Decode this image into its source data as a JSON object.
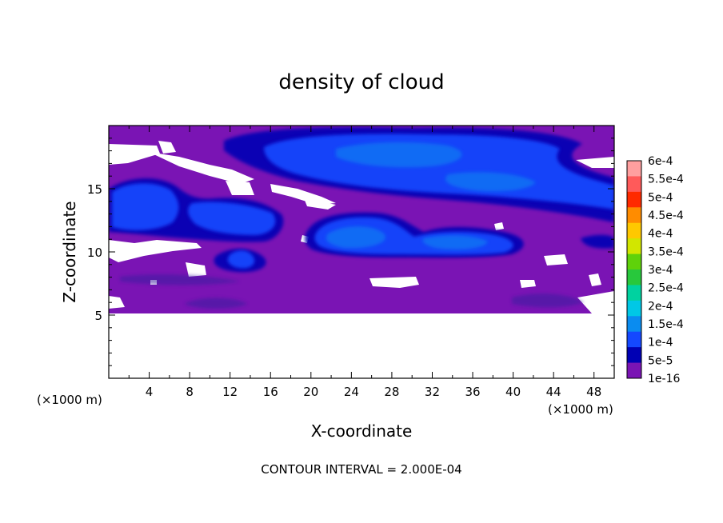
{
  "chart_data": {
    "type": "heatmap",
    "title": "density of cloud",
    "xlabel": "X-coordinate",
    "ylabel": "Z-coordinate",
    "x_unit": "(×1000 m)",
    "z_unit": "(×1000 m)",
    "xlim": [
      0,
      50
    ],
    "ylim": [
      0,
      20
    ],
    "x_ticks": [
      4,
      8,
      12,
      16,
      20,
      24,
      28,
      32,
      36,
      40,
      44,
      48
    ],
    "y_ticks": [
      5,
      10,
      15
    ],
    "colorbar": {
      "labels": [
        "6e-4",
        "5.5e-4",
        "5e-4",
        "4.5e-4",
        "4e-4",
        "3.5e-4",
        "3e-4",
        "2.5e-4",
        "2e-4",
        "1.5e-4",
        "1e-4",
        "5e-5",
        "1e-16"
      ],
      "colors": [
        "#ff9f9f",
        "#ff5a5a",
        "#ff2a00",
        "#ff8c00",
        "#ffc800",
        "#d2e600",
        "#5fd20a",
        "#28c83c",
        "#00d2a0",
        "#00c8e6",
        "#0a8cf0",
        "#1448ff",
        "#0000b4",
        "#7a14b4"
      ]
    },
    "cloud_regions": [
      {
        "level": "1e-16",
        "x_range": [
          0,
          50
        ],
        "z_range": [
          5.2,
          19.7
        ]
      },
      {
        "level": "5e-5",
        "x_range": [
          11,
          47
        ],
        "z_range": [
          14.5,
          19.5
        ]
      },
      {
        "level": "1e-4",
        "x_range": [
          20,
          40
        ],
        "z_range": [
          10,
          13
        ]
      },
      {
        "level": "1e-4",
        "x_range": [
          0,
          8
        ],
        "z_range": [
          11,
          16
        ]
      }
    ],
    "footer": "CONTOUR INTERVAL = 2.000E-04"
  }
}
